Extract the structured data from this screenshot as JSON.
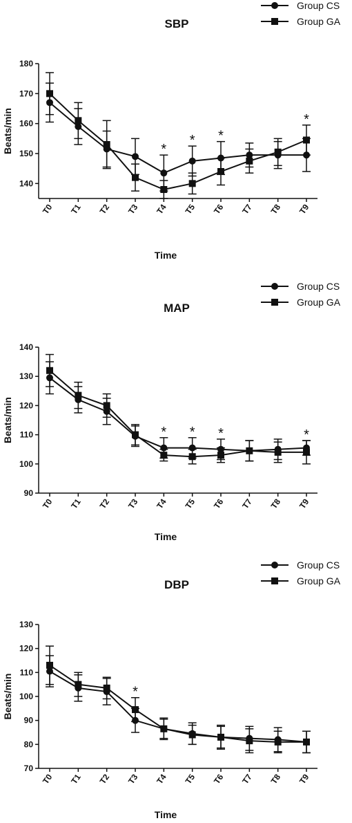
{
  "chart_data": [
    {
      "type": "line",
      "title": "SBP",
      "xlabel": "Time",
      "ylabel": "Beats/min",
      "categories": [
        "T0",
        "T1",
        "T2",
        "T3",
        "T4",
        "T5",
        "T6",
        "T7",
        "T8",
        "T9"
      ],
      "ylim": [
        135,
        180
      ],
      "yticks": [
        140,
        150,
        160,
        170,
        180
      ],
      "legend_position": "top-right",
      "series": [
        {
          "name": "Group CS",
          "marker": "circle",
          "values": [
            167,
            159,
            151.5,
            149,
            143.5,
            147.5,
            148.5,
            149.5,
            149.5,
            149.5
          ],
          "error": [
            6.5,
            6,
            6,
            6,
            6,
            5,
            5.5,
            4,
            4.5,
            5.5
          ]
        },
        {
          "name": "Group GA",
          "marker": "square",
          "values": [
            170,
            161,
            153,
            142,
            138,
            140,
            144,
            147.5,
            150.5,
            154.5
          ],
          "error": [
            7,
            6,
            8,
            4.5,
            3,
            3.5,
            4.5,
            4,
            4.5,
            5
          ]
        }
      ],
      "annotations": [
        {
          "category": "T4",
          "text": "*"
        },
        {
          "category": "T5",
          "text": "*"
        },
        {
          "category": "T6",
          "text": "*"
        },
        {
          "category": "T9",
          "text": "*"
        }
      ]
    },
    {
      "type": "line",
      "title": "MAP",
      "xlabel": "Time",
      "ylabel": "Beats/min",
      "categories": [
        "T0",
        "T1",
        "T2",
        "T3",
        "T4",
        "T5",
        "T6",
        "T7",
        "T8",
        "T9"
      ],
      "ylim": [
        90,
        140
      ],
      "yticks": [
        90,
        100,
        110,
        120,
        130,
        140
      ],
      "legend_position": "top-right",
      "series": [
        {
          "name": "Group CS",
          "marker": "circle",
          "values": [
            129.5,
            122,
            118,
            109.5,
            105.5,
            105.5,
            105,
            104.5,
            105,
            105.5
          ],
          "error": [
            5.5,
            4.5,
            4.5,
            3.5,
            3.5,
            3.5,
            3.5,
            3.5,
            3.5,
            2.5
          ]
        },
        {
          "name": "Group GA",
          "marker": "square",
          "values": [
            132,
            123.5,
            120,
            110,
            103,
            102.5,
            103,
            104.5,
            104,
            104
          ],
          "error": [
            5.5,
            4.5,
            4,
            3.5,
            2,
            2.5,
            2.5,
            3.5,
            3.5,
            4
          ]
        }
      ],
      "annotations": [
        {
          "category": "T4",
          "text": "*"
        },
        {
          "category": "T5",
          "text": "*"
        },
        {
          "category": "T6",
          "text": "*"
        },
        {
          "category": "T9",
          "text": "*"
        }
      ]
    },
    {
      "type": "line",
      "title": "DBP",
      "xlabel": "Time",
      "ylabel": "Beats/min",
      "categories": [
        "T0",
        "T1",
        "T2",
        "T3",
        "T4",
        "T5",
        "T6",
        "T7",
        "T8",
        "T9"
      ],
      "ylim": [
        70,
        130
      ],
      "yticks": [
        70,
        80,
        90,
        100,
        110,
        120,
        130
      ],
      "legend_position": "top-right",
      "series": [
        {
          "name": "Group CS",
          "marker": "circle",
          "values": [
            110.5,
            103.5,
            102,
            90,
            86.5,
            84.5,
            83,
            82.5,
            82,
            81
          ],
          "error": [
            6.5,
            5.5,
            5.5,
            5,
            4,
            4.5,
            5,
            5,
            5,
            4.5
          ]
        },
        {
          "name": "Group GA",
          "marker": "square",
          "values": [
            113,
            105,
            103.5,
            94.5,
            86.5,
            84,
            83,
            81.5,
            81,
            81
          ],
          "error": [
            8,
            5,
            4.5,
            5,
            4.5,
            4,
            4.5,
            5,
            4.5,
            4.5
          ]
        }
      ],
      "annotations": [
        {
          "category": "T3",
          "text": "*"
        }
      ]
    }
  ]
}
